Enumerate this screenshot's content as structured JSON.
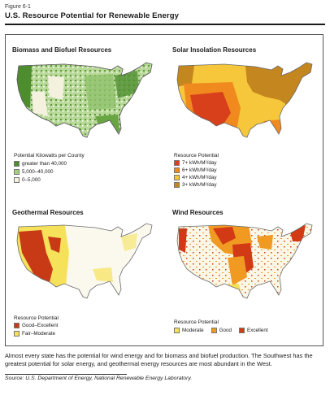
{
  "figure": {
    "label": "Figure 6-1",
    "title": "U.S. Resource Potential for Renewable Energy"
  },
  "panels": {
    "biomass": {
      "title": "Biomass and Biofuel Resources",
      "legend_title": "Potential Kilowatts per County",
      "legend": [
        {
          "label": "greater than 40,000",
          "color": "#4e8d2e"
        },
        {
          "label": "5,000–40,000",
          "color": "#a6cf83"
        },
        {
          "label": "0–5,000",
          "color": "#f4f1df"
        }
      ]
    },
    "solar": {
      "title": "Solar Insolation Resources",
      "legend_title": "Resource Potential",
      "legend": [
        {
          "label": "7+ kWh/M²/day",
          "color": "#d8401c"
        },
        {
          "label": "6+ kWh/M²/day",
          "color": "#f08a1e"
        },
        {
          "label": "4+ kWh/M²/day",
          "color": "#f6c73a"
        },
        {
          "label": "3+ kWh/M²/day",
          "color": "#c4861e"
        }
      ]
    },
    "geothermal": {
      "title": "Geothermal Resources",
      "legend_title": "Resource Potential",
      "legend": [
        {
          "label": "Good–Excellent",
          "color": "#c83a16"
        },
        {
          "label": "Fair–Moderate",
          "color": "#f6e25a"
        }
      ]
    },
    "wind": {
      "title": "Wind Resources",
      "legend_title": "Resource Potential",
      "legend": [
        {
          "label": "Moderate",
          "color": "#f6e25a"
        },
        {
          "label": "Good",
          "color": "#f09a22"
        },
        {
          "label": "Excellent",
          "color": "#d23a16"
        }
      ]
    }
  },
  "caption": "Almost every state has the potential for wind energy and for biomass and biofuel production.  The Southwest has the greatest potential for solar energy, and geothermal energy resources are most abundant in the West.",
  "source": "Source: U.S. Department of Energy, National Renewable Energy Laboratory."
}
